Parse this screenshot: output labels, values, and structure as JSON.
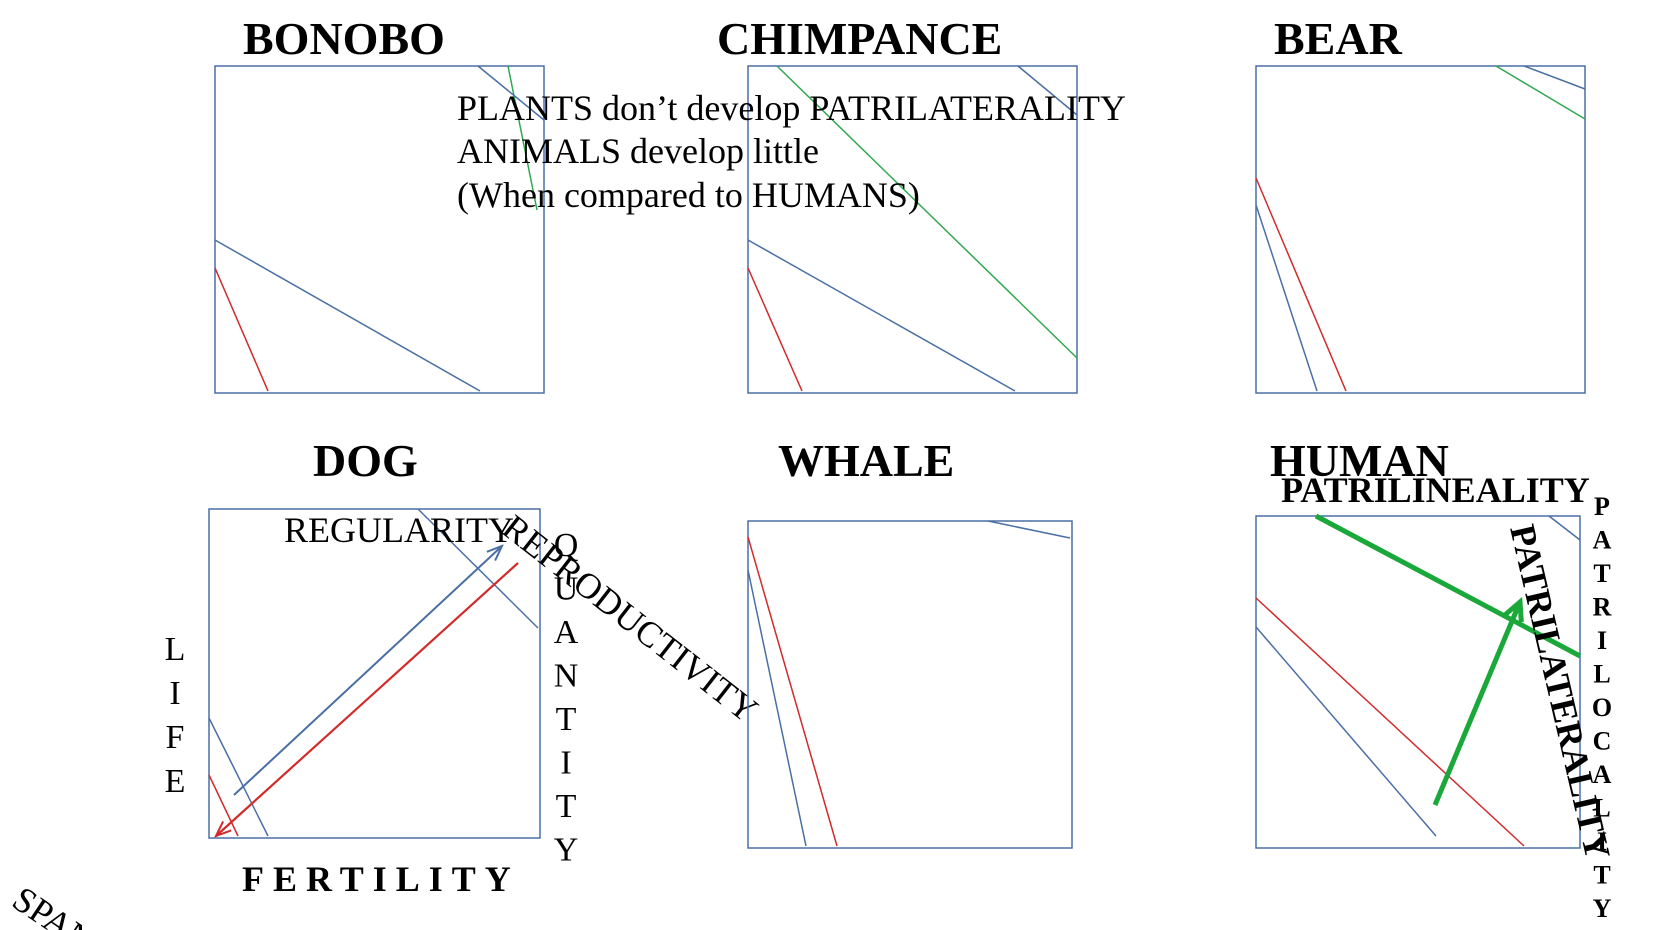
{
  "panels": [
    {
      "title": "BONOBO"
    },
    {
      "title": "CHIMPANCE"
    },
    {
      "title": "BEAR"
    },
    {
      "title": "DOG"
    },
    {
      "title": "WHALE"
    },
    {
      "title": "HUMAN"
    }
  ],
  "note": {
    "line1": "PLANTS don’t develop PATRILATERALITY",
    "line2": "ANIMALS develop little",
    "line3": "(When compared to HUMANS)"
  },
  "dog_labels": {
    "regularity": "REGULARITY",
    "reproductivity": "REPRODUCTIVITY",
    "life": "LIFE",
    "quantity": "QUANTITY",
    "fertility": "FERTILITY",
    "span": "SPAN"
  },
  "human_labels": {
    "patrilineality": "PATRILINEALITY",
    "patrilaterality": "PATRILATERALITY",
    "patrilocality": "PATRILOCALITY"
  },
  "colors": {
    "frame": "#4a6fa5",
    "blue_line": "#4a6fa5",
    "red_line": "#d22b2b",
    "green_line": "#2fa84f",
    "green_arrow": "#1aa83a"
  }
}
